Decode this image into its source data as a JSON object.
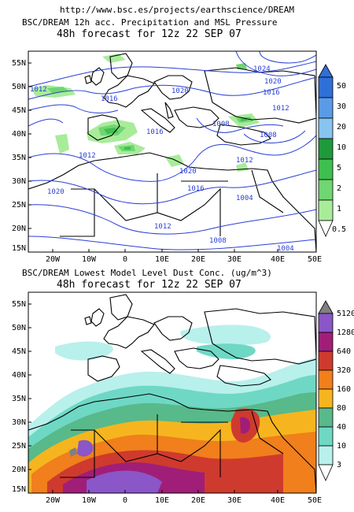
{
  "header": {
    "url": "http://www.bsc.es/projects/earthscience/DREAM"
  },
  "panels": [
    {
      "title": "BSC/DREAM 12h acc. Precipitation and MSL Pressure",
      "subtitle": "48h forecast for 12z 22 SEP 07",
      "lat_labels": [
        "55N",
        "50N",
        "45N",
        "40N",
        "35N",
        "30N",
        "25N",
        "20N",
        "15N"
      ],
      "lon_labels": [
        "20W",
        "10W",
        "0",
        "10E",
        "20E",
        "30E",
        "40E",
        "50E"
      ],
      "colorbar": {
        "levels": [
          "50",
          "30",
          "20",
          "10",
          "5",
          "2",
          "1",
          "0.5"
        ],
        "colors": [
          "#2f6fd8",
          "#5a9be8",
          "#87c4f0",
          "#1f9a3a",
          "#3fbf4f",
          "#6fd672",
          "#a8ec9a"
        ]
      },
      "isobar_labels": [
        "1024",
        "1020",
        "1016",
        "1012",
        "1008",
        "1004",
        "1012",
        "1020",
        "1016",
        "1012",
        "1016",
        "1020",
        "1020",
        "1016",
        "1012",
        "1008",
        "1008",
        "1012",
        "1004"
      ]
    },
    {
      "title": "BSC/DREAM Lowest Model Level Dust Conc. (ug/m^3)",
      "subtitle": "48h forecast for 12z 22 SEP 07",
      "lat_labels": [
        "55N",
        "50N",
        "45N",
        "40N",
        "35N",
        "30N",
        "25N",
        "20N",
        "15N"
      ],
      "lon_labels": [
        "20W",
        "10W",
        "0",
        "10E",
        "20E",
        "30E",
        "40E",
        "50E"
      ],
      "colorbar": {
        "levels": [
          "5120",
          "1280",
          "640",
          "320",
          "160",
          "80",
          "40",
          "10",
          "3"
        ],
        "colors": [
          "#808080",
          "#8a56c8",
          "#a01e78",
          "#cf3a2e",
          "#f07f1c",
          "#f6b51e",
          "#58b98a",
          "#6ed8c5",
          "#b8f0ec"
        ]
      }
    }
  ]
}
